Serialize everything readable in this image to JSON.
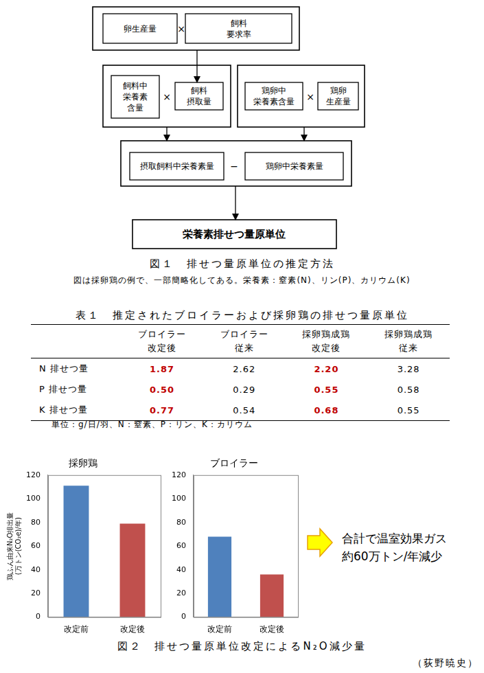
{
  "figure1": {
    "row1": {
      "items": [
        {
          "lines": [
            "卵生産量"
          ]
        },
        {
          "lines": [
            "飼料",
            "要求率"
          ]
        }
      ],
      "operator": "×"
    },
    "row2_left": {
      "items": [
        {
          "lines": [
            "飼料中",
            "栄養素",
            "含量"
          ]
        },
        {
          "lines": [
            "飼料",
            "摂取量"
          ]
        }
      ],
      "operator": "×"
    },
    "row2_right": {
      "items": [
        {
          "lines": [
            "鶏卵中",
            "栄養素含量"
          ]
        },
        {
          "lines": [
            "鶏卵",
            "生産量"
          ]
        }
      ],
      "operator": "×"
    },
    "row3": {
      "items": [
        {
          "lines": [
            "摂取飼料中栄養素量"
          ]
        },
        {
          "lines": [
            "鶏卵中栄養素量"
          ]
        }
      ],
      "operator": "−"
    },
    "result": "栄養素排せつ量原単位",
    "caption": "図１　排せつ量原単位の推定方法",
    "note": "図は採卵鶏の例で、一部簡略化してある。栄養素：窒素(N)、リン(P)、カリウム(K)"
  },
  "table1": {
    "title": "表１　推定されたブロイラーおよび採卵鶏の排せつ量原単位",
    "columns": [
      {
        "lines": [
          "ブロイラー",
          "改定後"
        ],
        "color": "#c00000"
      },
      {
        "lines": [
          "ブロイラー",
          "従来"
        ]
      },
      {
        "lines": [
          "採卵鶏成鶏",
          "改定後"
        ],
        "color": "#c00000"
      },
      {
        "lines": [
          "採卵鶏成鶏",
          "従来"
        ]
      }
    ],
    "rows": [
      {
        "label": "N 排せつ量",
        "values": [
          "1.87",
          "2.62",
          "2.20",
          "3.28"
        ]
      },
      {
        "label": "P 排せつ量",
        "values": [
          "0.50",
          "0.29",
          "0.55",
          "0.58"
        ]
      },
      {
        "label": "K 排せつ量",
        "values": [
          "0.77",
          "0.54",
          "0.68",
          "0.55"
        ]
      }
    ],
    "note": "単位：g/日/羽、N：窒素、P：リン、K：カリウム"
  },
  "chart_data": [
    {
      "type": "bar",
      "title": "採卵鶏",
      "categories": [
        "改定前",
        "改定後"
      ],
      "values": [
        111,
        79
      ],
      "colors": [
        "#4f81bd",
        "#c0504d"
      ],
      "ylim": [
        0,
        120
      ],
      "yticks": [
        0,
        20,
        40,
        60,
        80,
        100,
        120
      ],
      "ylabel": [
        "鶏ふん由来N₂O排出量",
        "(万トン(CO₂e)/年)"
      ],
      "grid": false
    },
    {
      "type": "bar",
      "title": "ブロイラー",
      "categories": [
        "改定前",
        "改定後"
      ],
      "values": [
        68,
        36
      ],
      "colors": [
        "#4f81bd",
        "#c0504d"
      ],
      "ylim": [
        0,
        120
      ],
      "yticks": [
        0,
        20,
        40,
        60,
        80,
        100,
        120
      ],
      "grid": false
    }
  ],
  "figure2": {
    "annotation": [
      "合計で温室効果ガス",
      "約60万トン/年減少"
    ],
    "caption": "図２　排せつ量原単位改定によるN₂O減少量"
  },
  "author": "（荻野暁史）"
}
